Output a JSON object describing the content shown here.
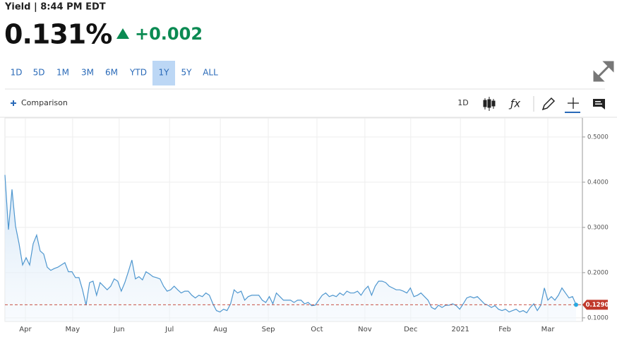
{
  "header": {
    "label": "Yield | 8:44 PM EDT",
    "price": "0.131%",
    "change": "+0.002"
  },
  "ranges": [
    "1D",
    "5D",
    "1M",
    "3M",
    "6M",
    "YTD",
    "1Y",
    "5Y",
    "ALL"
  ],
  "selected_range": "1Y",
  "toolbar": {
    "comparison": "Comparison",
    "interval": "1D"
  },
  "chart_data": {
    "type": "area",
    "color": "#4f97cf",
    "values": [
      0.416,
      0.295,
      0.384,
      0.303,
      0.264,
      0.217,
      0.233,
      0.217,
      0.264,
      0.283,
      0.248,
      0.241,
      0.212,
      0.205,
      0.209,
      0.212,
      0.217,
      0.222,
      0.202,
      0.202,
      0.189,
      0.189,
      0.162,
      0.128,
      0.178,
      0.181,
      0.15,
      0.178,
      0.17,
      0.162,
      0.17,
      0.186,
      0.181,
      0.159,
      0.178,
      0.202,
      0.228,
      0.186,
      0.191,
      0.184,
      0.202,
      0.197,
      0.191,
      0.189,
      0.186,
      0.17,
      0.159,
      0.162,
      0.17,
      0.162,
      0.155,
      0.159,
      0.159,
      0.15,
      0.144,
      0.15,
      0.147,
      0.155,
      0.15,
      0.131,
      0.116,
      0.113,
      0.119,
      0.116,
      0.131,
      0.162,
      0.155,
      0.159,
      0.139,
      0.147,
      0.15,
      0.15,
      0.15,
      0.139,
      0.134,
      0.147,
      0.131,
      0.155,
      0.147,
      0.139,
      0.139,
      0.139,
      0.134,
      0.139,
      0.139,
      0.131,
      0.134,
      0.127,
      0.128,
      0.139,
      0.15,
      0.155,
      0.147,
      0.15,
      0.147,
      0.155,
      0.15,
      0.159,
      0.155,
      0.155,
      0.159,
      0.15,
      0.162,
      0.17,
      0.15,
      0.17,
      0.181,
      0.181,
      0.178,
      0.17,
      0.166,
      0.162,
      0.162,
      0.159,
      0.155,
      0.166,
      0.147,
      0.15,
      0.155,
      0.147,
      0.139,
      0.123,
      0.119,
      0.128,
      0.123,
      0.128,
      0.128,
      0.131,
      0.127,
      0.119,
      0.131,
      0.144,
      0.147,
      0.144,
      0.147,
      0.139,
      0.131,
      0.128,
      0.123,
      0.127,
      0.119,
      0.116,
      0.119,
      0.113,
      0.116,
      0.119,
      0.113,
      0.116,
      0.111,
      0.123,
      0.131,
      0.116,
      0.128,
      0.166,
      0.139,
      0.147,
      0.139,
      0.15,
      0.166,
      0.155,
      0.144,
      0.147,
      0.129
    ],
    "xlim": [
      0,
      162
    ],
    "ylim": [
      0.092,
      0.542
    ],
    "xticks": [
      {
        "value": 5.8,
        "label": "Apr"
      },
      {
        "value": 19.2,
        "label": "May"
      },
      {
        "value": 32.4,
        "label": "Jun"
      },
      {
        "value": 46.7,
        "label": "Jul"
      },
      {
        "value": 61.1,
        "label": "Aug"
      },
      {
        "value": 74.7,
        "label": "Sep"
      },
      {
        "value": 88.5,
        "label": "Oct"
      },
      {
        "value": 102.1,
        "label": "Nov"
      },
      {
        "value": 115.1,
        "label": "Dec"
      },
      {
        "value": 129.2,
        "label": "2021"
      },
      {
        "value": 141.8,
        "label": "Feb"
      },
      {
        "value": 154.0,
        "label": "Mar"
      }
    ],
    "yticks": [
      {
        "value": 0.1,
        "label": "0.1000"
      },
      {
        "value": 0.2,
        "label": "0.2000"
      },
      {
        "value": 0.3,
        "label": "0.3000"
      },
      {
        "value": 0.4,
        "label": "0.4000"
      },
      {
        "value": 0.5,
        "label": "0.5000"
      }
    ],
    "grid": true,
    "last_value": {
      "value": 0.129,
      "label": "0.1290",
      "color": "#c0392b"
    }
  }
}
